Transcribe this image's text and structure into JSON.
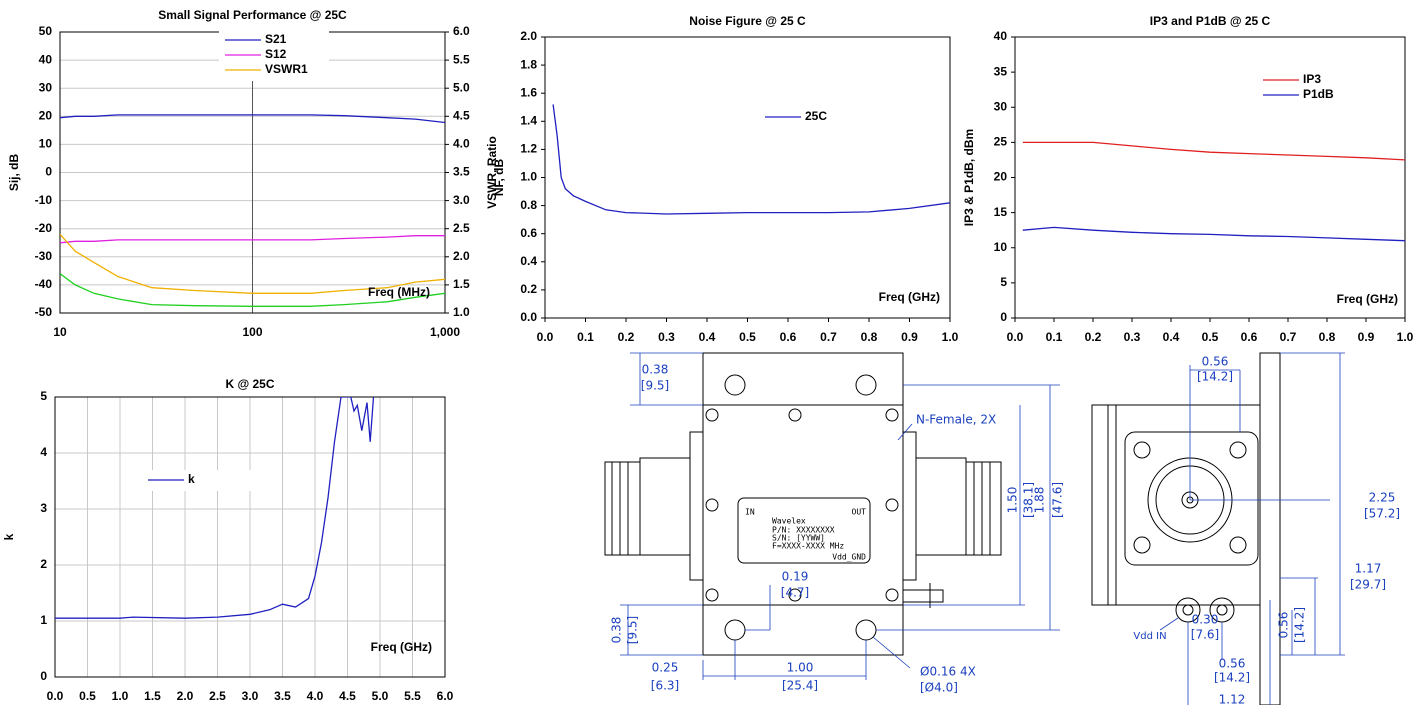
{
  "chart_data": [
    {
      "type": "line",
      "title": "Small Signal Performance @ 25C",
      "xlabel": "Freq (MHz)",
      "ylabel": "Sij, dB",
      "y2label": "VSWR, Ratio",
      "xlog": true,
      "grid": true,
      "x": [
        10,
        12,
        15,
        20,
        30,
        50,
        100,
        200,
        300,
        500,
        700,
        1000
      ],
      "series": [
        {
          "name": "S21",
          "color": "#2020c0",
          "values": [
            19.5,
            20,
            20,
            20.5,
            20.5,
            20.5,
            20.5,
            20.5,
            20.2,
            19.5,
            19,
            17.8
          ]
        },
        {
          "name": "S12",
          "color": "#e020e0",
          "values": [
            -25,
            -24.5,
            -24.5,
            -24,
            -24,
            -24,
            -24,
            -24,
            -23.5,
            -23,
            -22.5,
            -22.5
          ]
        },
        {
          "name": "VSWR1",
          "color": "#f0b000",
          "axis": "y2",
          "values": [
            2.4,
            2.1,
            1.9,
            1.65,
            1.45,
            1.4,
            1.35,
            1.35,
            1.4,
            1.45,
            1.55,
            1.6
          ]
        },
        {
          "color": "#20d020",
          "axis": "y2",
          "values": [
            1.7,
            1.5,
            1.35,
            1.25,
            1.15,
            1.13,
            1.12,
            1.12,
            1.15,
            1.2,
            1.28,
            1.35
          ]
        }
      ],
      "xlim": [
        10,
        1000
      ],
      "xticks": [
        10,
        100,
        {
          "value": 1000,
          "label": "1,000"
        }
      ],
      "ylim": [
        -50,
        50
      ],
      "yticks": [
        -50,
        -40,
        -30,
        -20,
        -10,
        0,
        10,
        20,
        30,
        40,
        50
      ],
      "y2lim": [
        1,
        6
      ],
      "y2ticks": [
        {
          "value": 1,
          "label": "1.0"
        },
        1.5,
        {
          "value": 2,
          "label": "2.0"
        },
        2.5,
        {
          "value": 3,
          "label": "3.0"
        },
        3.5,
        {
          "value": 4,
          "label": "4.0"
        },
        4.5,
        {
          "value": 5,
          "label": "5.0"
        },
        5.5,
        {
          "value": 6,
          "label": "6.0"
        }
      ]
    },
    {
      "type": "line",
      "title": "Noise Figure @ 25 C",
      "xlabel": "Freq (GHz)",
      "ylabel": "NF, dB",
      "grid": false,
      "x": [
        0.02,
        0.03,
        0.04,
        0.05,
        0.07,
        0.1,
        0.15,
        0.2,
        0.3,
        0.4,
        0.5,
        0.6,
        0.7,
        0.8,
        0.9,
        1.0
      ],
      "series": [
        {
          "name": "25C",
          "color": "#2020c0",
          "values": [
            1.52,
            1.3,
            1.0,
            0.92,
            0.87,
            0.83,
            0.77,
            0.75,
            0.74,
            0.745,
            0.75,
            0.75,
            0.75,
            0.755,
            0.78,
            0.82
          ]
        }
      ],
      "xlim": [
        0,
        1
      ],
      "xticks": [
        {
          "value": 0,
          "label": "0.0"
        },
        0.1,
        0.2,
        0.3,
        0.4,
        0.5,
        0.6,
        0.7,
        0.8,
        0.9,
        {
          "value": 1,
          "label": "1.0"
        }
      ],
      "ylim": [
        0,
        2
      ],
      "yticks": [
        {
          "value": 0,
          "label": "0.0"
        },
        0.2,
        0.4,
        0.6,
        0.8,
        {
          "value": 1,
          "label": "1.0"
        },
        1.2,
        1.4,
        1.6,
        1.8,
        {
          "value": 2,
          "label": "2.0"
        }
      ]
    },
    {
      "type": "line",
      "title": "IP3 and P1dB @ 25 C",
      "xlabel": "Freq (GHz)",
      "ylabel": "IP3 & P1dB, dBm",
      "grid": false,
      "x": [
        0.02,
        0.1,
        0.2,
        0.3,
        0.4,
        0.5,
        0.6,
        0.7,
        0.8,
        0.9,
        1.0
      ],
      "series": [
        {
          "name": "IP3",
          "color": "#e02020",
          "values": [
            25,
            25,
            25,
            24.5,
            24,
            23.6,
            23.4,
            23.2,
            23.0,
            22.8,
            22.5
          ]
        },
        {
          "name": "P1dB",
          "color": "#2020c0",
          "values": [
            12.5,
            12.9,
            12.5,
            12.2,
            12.0,
            11.9,
            11.7,
            11.6,
            11.4,
            11.2,
            11.0
          ]
        }
      ],
      "xlim": [
        0,
        1
      ],
      "xticks": [
        {
          "value": 0,
          "label": "0.0"
        },
        0.1,
        0.2,
        0.3,
        0.4,
        0.5,
        0.6,
        0.7,
        0.8,
        0.9,
        {
          "value": 1,
          "label": "1.0"
        }
      ],
      "ylim": [
        0,
        40
      ],
      "yticks": [
        0,
        5,
        10,
        15,
        20,
        25,
        30,
        35,
        40
      ]
    },
    {
      "type": "line",
      "title": "K @ 25C",
      "xlabel": "Freq (GHz)",
      "ylabel": "k",
      "grid": true,
      "x": [
        0,
        1,
        1.2,
        2,
        2.5,
        3.0,
        3.3,
        3.5,
        3.7,
        3.9,
        4.0,
        4.1,
        4.2,
        4.3,
        4.4,
        4.55,
        4.6,
        4.65,
        4.72,
        4.8,
        4.85,
        4.9
      ],
      "series": [
        {
          "name": "k",
          "color": "#2020c0",
          "values": [
            1.05,
            1.05,
            1.07,
            1.05,
            1.07,
            1.12,
            1.2,
            1.3,
            1.25,
            1.4,
            1.8,
            2.4,
            3.2,
            4.2,
            5.0,
            5.0,
            4.75,
            4.85,
            4.4,
            4.9,
            4.2,
            5.0
          ]
        }
      ],
      "xlim": [
        0,
        6
      ],
      "xticks": [
        {
          "value": 0,
          "label": "0.0"
        },
        0.5,
        {
          "value": 1,
          "label": "1.0"
        },
        1.5,
        {
          "value": 2,
          "label": "2.0"
        },
        2.5,
        {
          "value": 3,
          "label": "3.0"
        },
        3.5,
        {
          "value": 4,
          "label": "4.0"
        },
        4.5,
        {
          "value": 5,
          "label": "5.0"
        },
        5.5,
        {
          "value": 6,
          "label": "6.0"
        }
      ],
      "ylim": [
        0,
        5
      ],
      "yticks": [
        0,
        1,
        2,
        3,
        4,
        5
      ]
    }
  ],
  "drawing": {
    "labels": [
      "0.38",
      "[9.5]",
      "N-Female, 2X",
      "1.50",
      "[38.1]",
      "1.88",
      "[47.6]",
      "0.19",
      "[4.7]",
      "0.38",
      "[9.5]",
      "0.25",
      "[6.3]",
      "1.00",
      "[25.4]",
      "Ø0.16 4X",
      "[Ø4.0]",
      "IN",
      "OUT",
      "Wavelex",
      "P/N: XXXXXXXX",
      "S/N: [YYWW]",
      "F=XXXX-XXXX MHz",
      "Vdd_GND",
      "0.56",
      "[14.2]",
      "2.25",
      "[57.2]",
      "1.17",
      "[29.7]",
      "0.30",
      "[7.6]",
      "0.56",
      "[14.2]",
      "Vdd IN",
      "0.56",
      "[14.2]",
      "1.12"
    ]
  }
}
